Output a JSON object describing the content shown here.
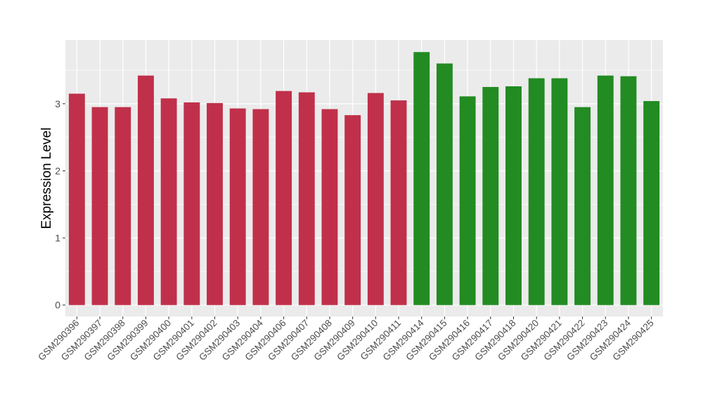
{
  "chart_data": {
    "type": "bar",
    "title": "",
    "xlabel": "",
    "ylabel": "Expression Level",
    "ylim": [
      -0.17,
      3.95
    ],
    "yticks": [
      0,
      1,
      2,
      3
    ],
    "grid": true,
    "categories": [
      "GSM290396",
      "GSM290397",
      "GSM290398",
      "GSM290399",
      "GSM290400",
      "GSM290401",
      "GSM290402",
      "GSM290403",
      "GSM290404",
      "GSM290406",
      "GSM290407",
      "GSM290408",
      "GSM290409",
      "GSM290410",
      "GSM290411",
      "GSM290414",
      "GSM290415",
      "GSM290416",
      "GSM290417",
      "GSM290418",
      "GSM290420",
      "GSM290421",
      "GSM290422",
      "GSM290423",
      "GSM290424",
      "GSM290425"
    ],
    "values": [
      3.15,
      2.95,
      2.95,
      3.42,
      3.08,
      3.02,
      3.01,
      2.93,
      2.92,
      3.19,
      3.17,
      2.92,
      2.83,
      3.16,
      3.05,
      3.77,
      3.6,
      3.11,
      3.25,
      3.26,
      3.38,
      3.38,
      2.95,
      3.42,
      3.41,
      3.04
    ],
    "groups": [
      "a",
      "a",
      "a",
      "a",
      "a",
      "a",
      "a",
      "a",
      "a",
      "a",
      "a",
      "a",
      "a",
      "a",
      "a",
      "b",
      "b",
      "b",
      "b",
      "b",
      "b",
      "b",
      "b",
      "b",
      "b",
      "b"
    ],
    "colors": {
      "a": "#C0304A",
      "b": "#228B22"
    }
  }
}
